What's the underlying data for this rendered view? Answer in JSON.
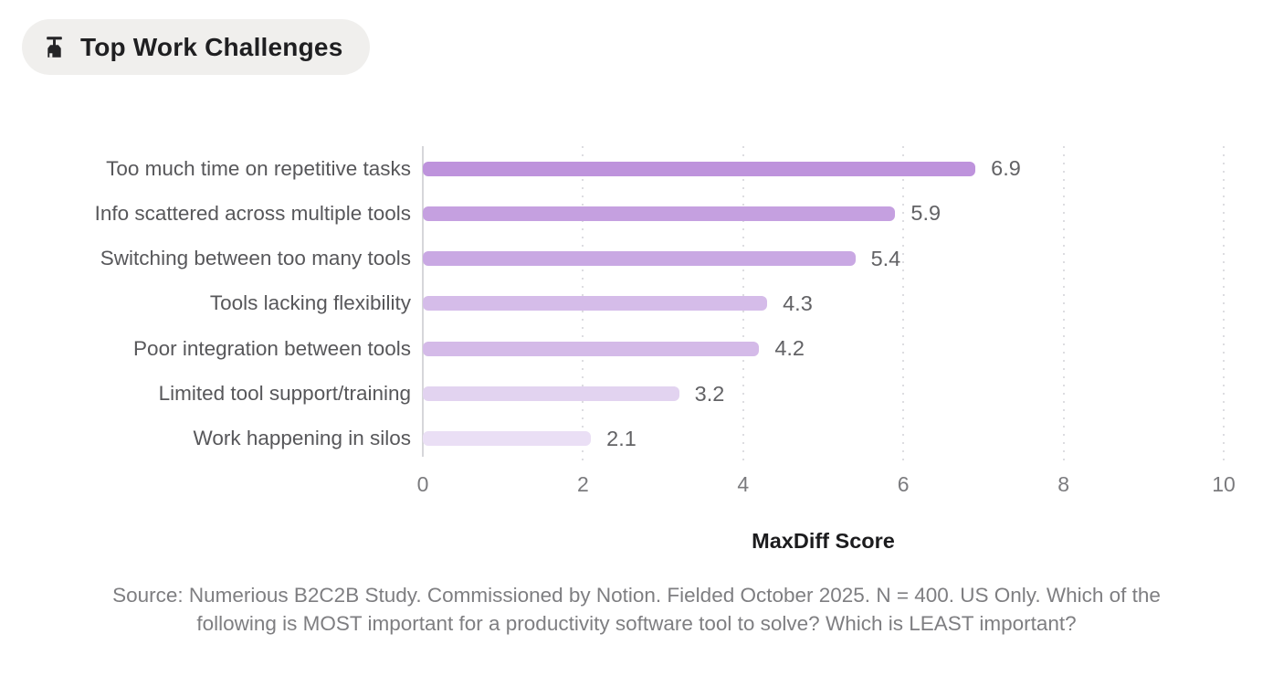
{
  "badge": {
    "icon": "broom-icon",
    "label": "Top Work Challenges",
    "background": "#f0efed",
    "text_color": "#1f1f21"
  },
  "chart_data": {
    "type": "bar",
    "orientation": "horizontal",
    "title": "Top Work Challenges",
    "categories": [
      "Too much time on repetitive tasks",
      "Info scattered across multiple tools",
      "Switching between too many tools",
      "Tools lacking flexibility",
      "Poor integration between tools",
      "Limited tool support/training",
      "Work happening in silos"
    ],
    "values": [
      6.9,
      5.9,
      5.4,
      4.3,
      4.2,
      3.2,
      2.1
    ],
    "bar_colors": [
      "#be93dc",
      "#c5a0e0",
      "#c9a8e3",
      "#d5bce9",
      "#d4bae8",
      "#e2d3f0",
      "#eadff5"
    ],
    "xlabel": "MaxDiff Score",
    "xlim": [
      0,
      10
    ],
    "xticks": [
      0,
      2,
      4,
      6,
      8,
      10
    ],
    "grid": "vertical-dotted",
    "legend": "none",
    "label_color": "#57575a",
    "value_label_color": "#626265",
    "tick_color": "#7b7b7e"
  },
  "source": {
    "line1": "Source: Numerious B2C2B Study. Commissioned by Notion. Fielded October 2025. N = 400. US Only. Which of the",
    "line2": "following is MOST important for a productivity software tool to solve? Which is LEAST important?"
  }
}
